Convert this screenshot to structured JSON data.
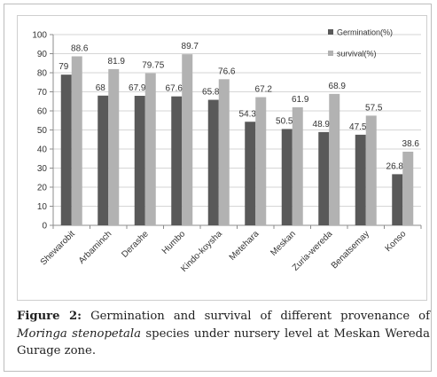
{
  "chart_data": {
    "type": "bar",
    "categories": [
      "Shewarobit",
      "Arbaminch",
      "Derashe",
      "Humbo",
      "Kindo-koysha",
      "Metehara",
      "Meskan",
      "Zuria-wereda",
      "Benatsemay",
      "Konso"
    ],
    "series": [
      {
        "name": "Germination(%)",
        "color": "#595959",
        "values": [
          79,
          68,
          67.9,
          67.6,
          65.8,
          54.3,
          50.5,
          48.9,
          47.5,
          26.8
        ],
        "labels": [
          "79",
          "68",
          "67.9",
          "67.6",
          "65.8",
          "54.3",
          "50.5",
          "48.9",
          "47.5",
          "26.8"
        ]
      },
      {
        "name": "survival(%)",
        "color": "#b2b2b2",
        "values": [
          88.6,
          81.9,
          79.75,
          89.7,
          76.6,
          67.2,
          61.9,
          68.9,
          57.5,
          38.6
        ],
        "labels": [
          "88.6",
          "81.9",
          "79.75",
          "89.7",
          "76.6",
          "67.2",
          "61.9",
          "68.9",
          "57.5",
          "38.6"
        ]
      }
    ],
    "yticks": [
      "0",
      "10",
      "20",
      "30",
      "40",
      "50",
      "60",
      "70",
      "80",
      "90",
      "100"
    ],
    "ylim": [
      0,
      100
    ],
    "grid": true,
    "legend_position": "top-right"
  },
  "caption": {
    "label": "Figure 2:",
    "text_before_species": " Germination and survival of different provenance of ",
    "species": "Moringa stenopetala",
    "text_after_species": " species under nursery level at Meskan Wereda Gurage zone."
  }
}
